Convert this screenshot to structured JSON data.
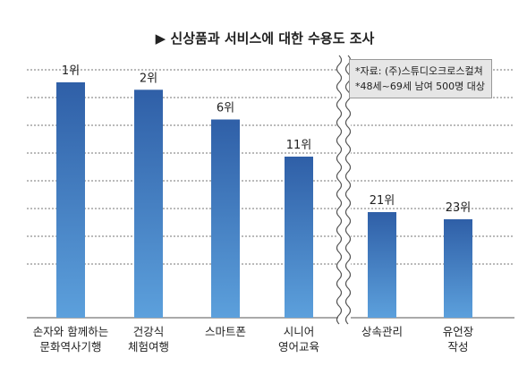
{
  "chart_data": {
    "type": "bar",
    "title": "▶ 신상품과 서비스에 대한 수용도 조사",
    "categories": [
      [
        "손자와 함께하는",
        "문화역사기행"
      ],
      [
        "건강식",
        "체험여행"
      ],
      [
        "스마트폰"
      ],
      [
        "시니어",
        "영어교육"
      ],
      [
        "상속관리"
      ],
      [
        "유언장",
        "작성"
      ]
    ],
    "rank_labels": [
      "1위",
      "2위",
      "6위",
      "11위",
      "21위",
      "23위"
    ],
    "values": [
      1,
      2,
      6,
      11,
      21,
      23
    ],
    "axis_break_after_index": 3,
    "grid": true,
    "bar_color_top": "#2f5fa7",
    "bar_color_bottom": "#5ca0dc"
  },
  "notes": [
    "*자료: (주)스튜디오크로스컬쳐",
    "*48세~69세 남여 500명 대상"
  ]
}
